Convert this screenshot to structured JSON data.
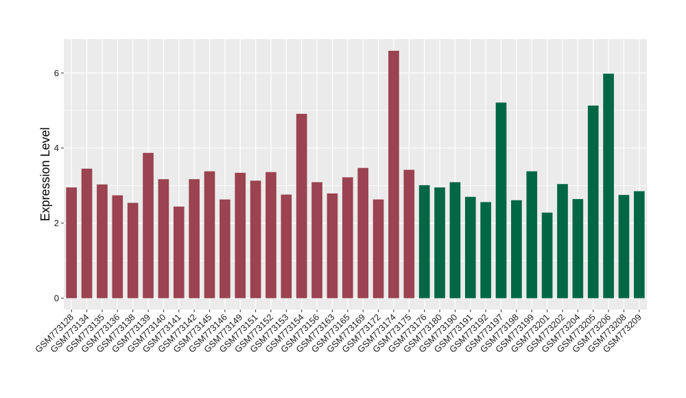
{
  "chart_data": {
    "type": "bar",
    "title": "",
    "xlabel": "",
    "ylabel": "Expression Level",
    "ylim": [
      -0.3,
      6.9
    ],
    "yticks": [
      0,
      2,
      4,
      6
    ],
    "grid": true,
    "categories": [
      "GSM773128",
      "GSM773134",
      "GSM773135",
      "GSM773136",
      "GSM773138",
      "GSM773139",
      "GSM773140",
      "GSM773141",
      "GSM773142",
      "GSM773145",
      "GSM773146",
      "GSM773149",
      "GSM773151",
      "GSM773152",
      "GSM773153",
      "GSM773154",
      "GSM773156",
      "GSM773163",
      "GSM773165",
      "GSM773169",
      "GSM773172",
      "GSM773174",
      "GSM773175",
      "GSM773176",
      "GSM773180",
      "GSM773190",
      "GSM773191",
      "GSM773192",
      "GSM773197",
      "GSM773198",
      "GSM773199",
      "GSM773201",
      "GSM773202",
      "GSM773204",
      "GSM773205",
      "GSM773206",
      "GSM773208",
      "GSM773209"
    ],
    "values": [
      2.95,
      3.45,
      3.03,
      2.74,
      2.54,
      3.87,
      3.17,
      2.44,
      3.17,
      3.38,
      2.63,
      3.34,
      3.13,
      3.36,
      2.76,
      4.91,
      3.09,
      2.79,
      3.22,
      3.47,
      2.63,
      6.59,
      3.42,
      3.01,
      2.95,
      3.09,
      2.7,
      2.56,
      5.21,
      2.61,
      3.38,
      2.28,
      3.04,
      2.64,
      5.13,
      5.98,
      2.75,
      2.85
    ],
    "group_split_index": 23,
    "colors": {
      "group1": "#9b4350",
      "group2": "#006744",
      "panel": "#ebebeb",
      "grid": "#ffffff"
    }
  }
}
